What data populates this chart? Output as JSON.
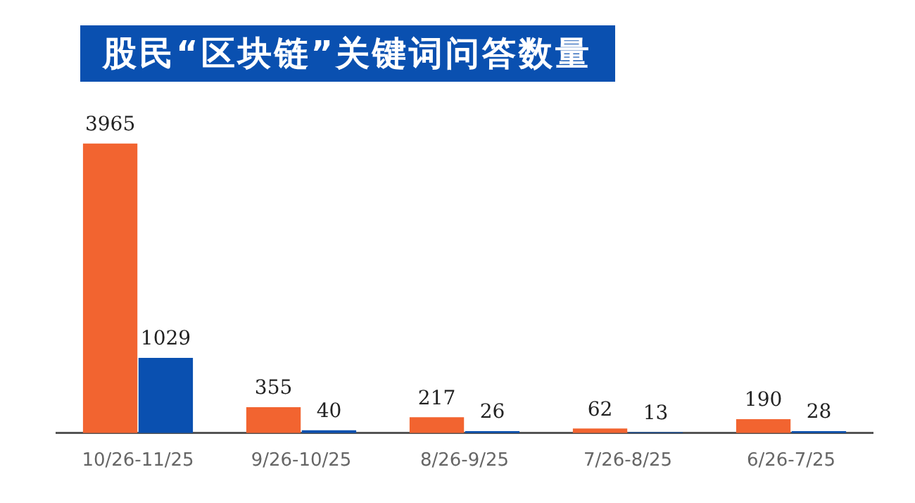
{
  "chart_data": {
    "type": "bar",
    "title": "股民“区块链”关键词问答数量",
    "categories": [
      "10/26-11/25",
      "9/26-10/25",
      "8/26-9/25",
      "7/26-8/25",
      "6/26-7/25"
    ],
    "series": [
      {
        "color": "#f26430",
        "values": [
          3965,
          355,
          217,
          62,
          190
        ]
      },
      {
        "color": "#0a50b0",
        "values": [
          1029,
          40,
          26,
          13,
          28
        ]
      }
    ],
    "data_labels": true,
    "grid": false
  }
}
